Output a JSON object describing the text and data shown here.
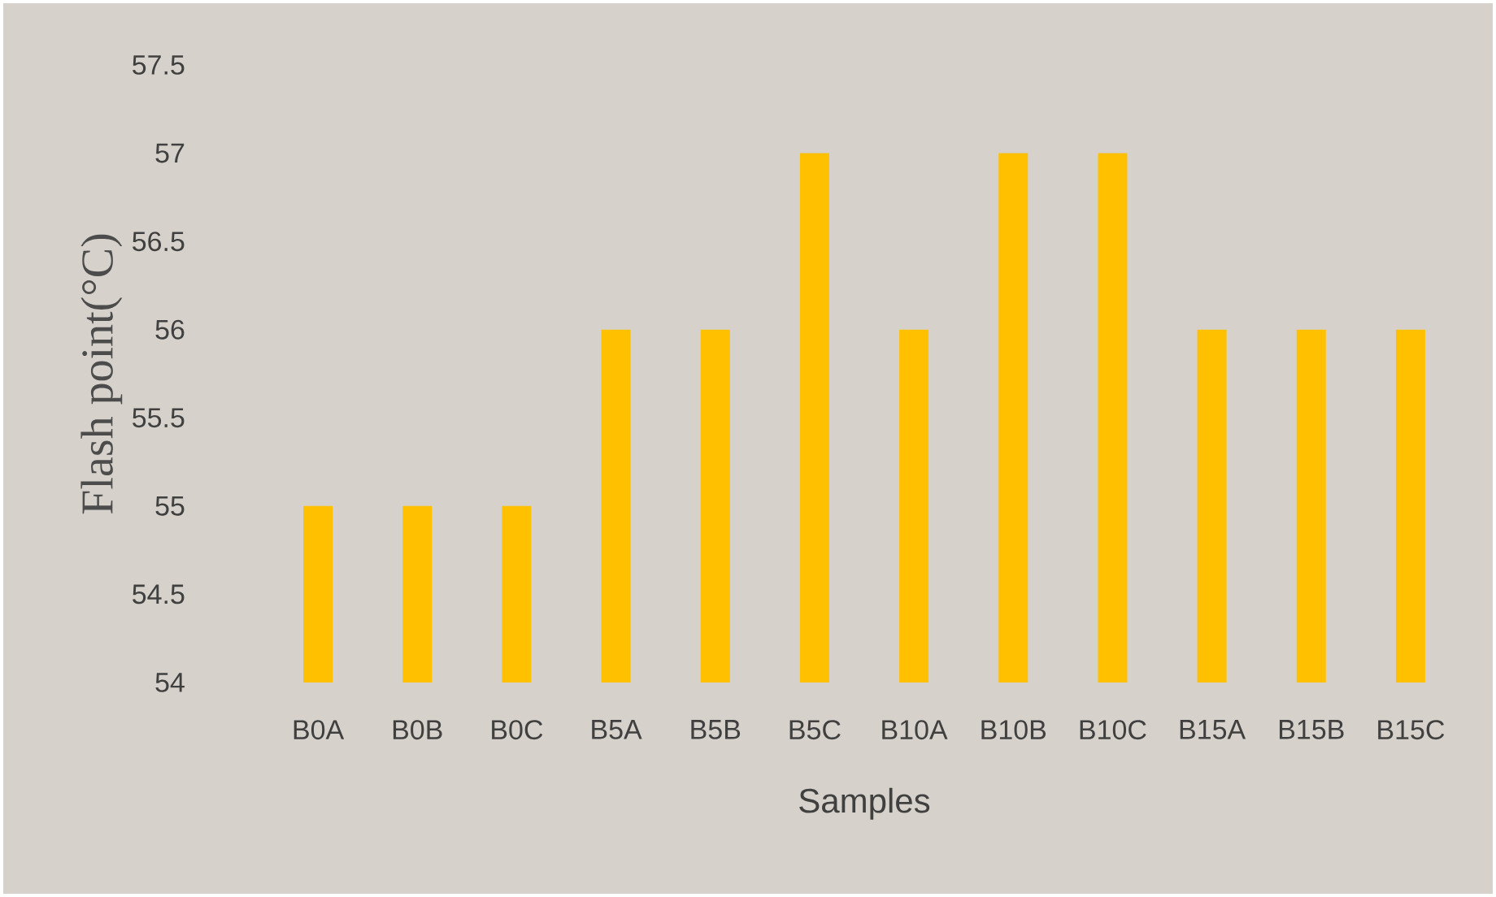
{
  "chart_data": {
    "type": "bar",
    "categories": [
      "B0A",
      "B0B",
      "B0C",
      "B5A",
      "B5B",
      "B5C",
      "B10A",
      "B10B",
      "B10C",
      "B15A",
      "B15B",
      "B15C"
    ],
    "values": [
      55,
      55,
      55,
      56,
      56,
      57,
      56,
      57,
      57,
      56,
      56,
      56
    ],
    "color": "#ffc000",
    "xlabel": "Samples",
    "ylabel": "Flash point(°C)",
    "ylim": [
      54,
      57.5
    ],
    "yticks": [
      54,
      54.5,
      55,
      55.5,
      56,
      56.5,
      57,
      57.5
    ]
  }
}
